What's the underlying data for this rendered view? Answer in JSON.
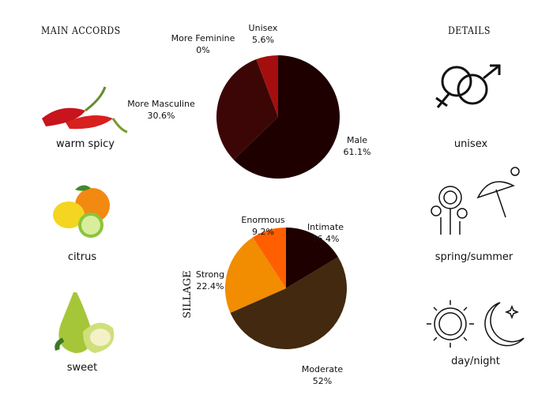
{
  "accords": {
    "title": "MAIN ACCORDS",
    "items": [
      {
        "label": "warm spicy",
        "icon": "chili-pepper-icon"
      },
      {
        "label": "citrus",
        "icon": "citrus-fruit-icon"
      },
      {
        "label": "sweet",
        "icon": "pear-icon"
      }
    ]
  },
  "details": {
    "title": "DETAILS",
    "items": [
      {
        "label": "unisex",
        "icon": "gender-symbols-icon"
      },
      {
        "label": "spring/summer",
        "icon": "flowers-umbrella-icon"
      },
      {
        "label": "day/night",
        "icon": "sun-moon-icon"
      }
    ]
  },
  "chart_data": [
    {
      "type": "pie",
      "categories": [
        "Male",
        "More Masculine",
        "More Feminine",
        "Unisex"
      ],
      "values": [
        61.1,
        30.6,
        0,
        5.6
      ],
      "value_labels": [
        "61.1%",
        "30.6%",
        "0%",
        "5.6%"
      ],
      "colors": [
        "#1e0000",
        "#3d0606",
        "#e85a5a",
        "#a50e0e"
      ]
    },
    {
      "type": "pie",
      "title": "SILLAGE",
      "categories": [
        "Intimate",
        "Moderate",
        "Strong",
        "Enormous"
      ],
      "values": [
        16.4,
        52,
        22.4,
        9.2
      ],
      "value_labels": [
        "16.4%",
        "52%",
        "22.4%",
        "9.2%"
      ],
      "colors": [
        "#1e0000",
        "#42290f",
        "#f28c00",
        "#ff5f00"
      ]
    }
  ]
}
